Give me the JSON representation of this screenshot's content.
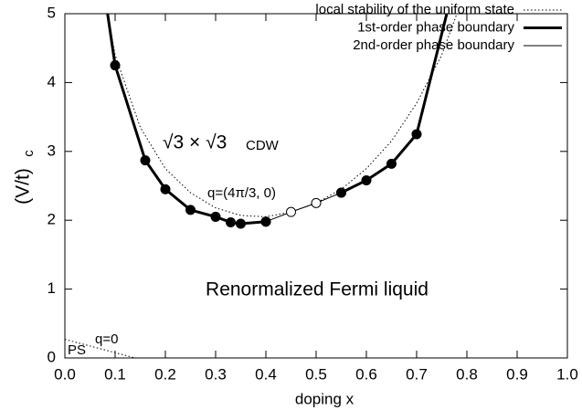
{
  "chart_data": {
    "type": "line",
    "xlabel": "doping x",
    "ylabel": "(V/t)",
    "ylabel_sub": "c",
    "xlim": [
      0,
      1
    ],
    "ylim": [
      0,
      5
    ],
    "xticks": [
      {
        "value": 0,
        "label": "0.0"
      },
      0.1,
      0.2,
      0.3,
      0.4,
      0.5,
      0.6,
      0.7,
      0.8,
      0.9,
      {
        "value": 1,
        "label": "1.0"
      }
    ],
    "yticks": [
      0,
      1,
      2,
      3,
      4,
      5
    ],
    "legend": "top-right",
    "annotations": [
      "√3 × √3",
      "CDW",
      "q=(4π/3, 0)",
      "Renormalized Fermi liquid",
      "q=0",
      "PS"
    ],
    "series": [
      {
        "name": "local stability of the uniform state",
        "color": "#000000",
        "style": "dotted",
        "x": [
          0.085,
          0.1,
          0.15,
          0.2,
          0.25,
          0.3,
          0.35,
          0.4,
          0.45,
          0.5,
          0.55,
          0.6,
          0.65,
          0.7,
          0.75,
          0.78,
          null,
          0,
          0.14
        ],
        "values": [
          5,
          4.4,
          3.35,
          2.75,
          2.4,
          2.18,
          2.07,
          2.05,
          2.12,
          2.25,
          2.45,
          2.75,
          3.15,
          3.7,
          4.4,
          5,
          null,
          0.27,
          0
        ]
      },
      {
        "name": "1st-order phase boundary",
        "color": "#000000",
        "style": "thick",
        "marker": "filled",
        "x": [
          0.085,
          0.1,
          0.16,
          0.2,
          0.25,
          0.3,
          0.33,
          0.35,
          0.4,
          null,
          0.55,
          0.6,
          0.65,
          0.7,
          0.76
        ],
        "values": [
          5,
          4.25,
          2.87,
          2.45,
          2.15,
          2.05,
          1.97,
          1.95,
          1.98,
          null,
          2.4,
          2.58,
          2.82,
          3.25,
          5
        ]
      },
      {
        "name": "2nd-order phase boundary",
        "color": "#000000",
        "style": "thin",
        "marker": "open",
        "x": [
          0.4,
          0.45,
          0.5,
          0.55
        ],
        "values": [
          1.98,
          2.12,
          2.25,
          2.4
        ]
      }
    ]
  }
}
